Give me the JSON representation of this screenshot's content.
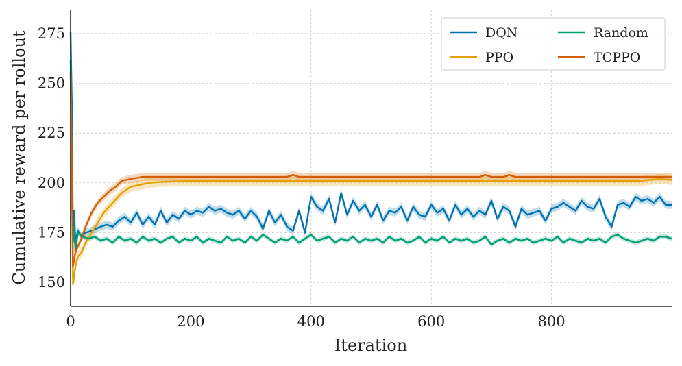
{
  "chart_data": {
    "type": "line",
    "title": "",
    "xlabel": "Iteration",
    "ylabel": "Cumulative reward per rollout",
    "xlim": [
      0,
      1000
    ],
    "ylim": [
      138,
      287
    ],
    "xticks": [
      0,
      200,
      400,
      600,
      800
    ],
    "yticks": [
      150,
      175,
      200,
      225,
      250,
      275
    ],
    "grid": true,
    "legend_position": "top-right",
    "series": [
      {
        "name": "DQN",
        "color": "#0072b2",
        "band": 2.0,
        "points": [
          [
            0,
            276
          ],
          [
            2,
            240
          ],
          [
            4,
            170
          ],
          [
            6,
            186
          ],
          [
            8,
            170
          ],
          [
            12,
            176
          ],
          [
            18,
            173
          ],
          [
            25,
            175
          ],
          [
            35,
            176
          ],
          [
            50,
            178
          ],
          [
            60,
            179
          ],
          [
            70,
            178
          ],
          [
            80,
            181
          ],
          [
            90,
            183
          ],
          [
            100,
            180
          ],
          [
            110,
            185
          ],
          [
            120,
            179
          ],
          [
            130,
            183
          ],
          [
            140,
            179
          ],
          [
            150,
            186
          ],
          [
            160,
            180
          ],
          [
            170,
            184
          ],
          [
            180,
            182
          ],
          [
            190,
            186
          ],
          [
            200,
            184
          ],
          [
            210,
            186
          ],
          [
            220,
            185
          ],
          [
            230,
            188
          ],
          [
            240,
            186
          ],
          [
            250,
            187
          ],
          [
            260,
            185
          ],
          [
            270,
            184
          ],
          [
            280,
            186
          ],
          [
            290,
            182
          ],
          [
            300,
            186
          ],
          [
            310,
            183
          ],
          [
            320,
            177
          ],
          [
            330,
            186
          ],
          [
            340,
            180
          ],
          [
            350,
            184
          ],
          [
            360,
            178
          ],
          [
            370,
            176
          ],
          [
            380,
            186
          ],
          [
            390,
            175
          ],
          [
            400,
            193
          ],
          [
            410,
            188
          ],
          [
            420,
            186
          ],
          [
            430,
            192
          ],
          [
            440,
            180
          ],
          [
            450,
            195
          ],
          [
            460,
            184
          ],
          [
            470,
            191
          ],
          [
            480,
            186
          ],
          [
            490,
            189
          ],
          [
            500,
            183
          ],
          [
            510,
            189
          ],
          [
            520,
            181
          ],
          [
            530,
            186
          ],
          [
            540,
            185
          ],
          [
            550,
            188
          ],
          [
            560,
            181
          ],
          [
            570,
            188
          ],
          [
            580,
            184
          ],
          [
            590,
            183
          ],
          [
            600,
            189
          ],
          [
            610,
            185
          ],
          [
            620,
            187
          ],
          [
            630,
            181
          ],
          [
            640,
            189
          ],
          [
            650,
            184
          ],
          [
            660,
            187
          ],
          [
            670,
            183
          ],
          [
            680,
            186
          ],
          [
            690,
            184
          ],
          [
            700,
            191
          ],
          [
            710,
            182
          ],
          [
            720,
            188
          ],
          [
            730,
            186
          ],
          [
            740,
            178
          ],
          [
            750,
            187
          ],
          [
            760,
            184
          ],
          [
            770,
            185
          ],
          [
            780,
            186
          ],
          [
            790,
            181
          ],
          [
            800,
            187
          ],
          [
            810,
            188
          ],
          [
            820,
            190
          ],
          [
            830,
            188
          ],
          [
            840,
            186
          ],
          [
            850,
            191
          ],
          [
            860,
            188
          ],
          [
            870,
            187
          ],
          [
            880,
            192
          ],
          [
            890,
            183
          ],
          [
            900,
            178
          ],
          [
            910,
            189
          ],
          [
            920,
            190
          ],
          [
            930,
            188
          ],
          [
            940,
            193
          ],
          [
            950,
            191
          ],
          [
            960,
            192
          ],
          [
            970,
            190
          ],
          [
            980,
            193
          ],
          [
            990,
            189
          ],
          [
            1000,
            189
          ]
        ]
      },
      {
        "name": "PPO",
        "color": "#e69f00",
        "band": 2.5,
        "points": [
          [
            0,
            256
          ],
          [
            2,
            200
          ],
          [
            4,
            149
          ],
          [
            8,
            158
          ],
          [
            12,
            163
          ],
          [
            18,
            165
          ],
          [
            25,
            170
          ],
          [
            35,
            175
          ],
          [
            45,
            180
          ],
          [
            55,
            185
          ],
          [
            70,
            190
          ],
          [
            85,
            195
          ],
          [
            100,
            198
          ],
          [
            115,
            199
          ],
          [
            130,
            200
          ],
          [
            150,
            200.5
          ],
          [
            200,
            201
          ],
          [
            300,
            201
          ],
          [
            400,
            201
          ],
          [
            500,
            201
          ],
          [
            600,
            201
          ],
          [
            700,
            201
          ],
          [
            800,
            201
          ],
          [
            900,
            201
          ],
          [
            950,
            201
          ],
          [
            980,
            202
          ],
          [
            1000,
            201.5
          ]
        ]
      },
      {
        "name": "Random",
        "color": "#009e73",
        "band": 1.2,
        "points": [
          [
            0,
            262
          ],
          [
            2,
            210
          ],
          [
            4,
            172
          ],
          [
            6,
            178
          ],
          [
            8,
            165
          ],
          [
            12,
            175
          ],
          [
            20,
            173
          ],
          [
            30,
            172
          ],
          [
            40,
            173
          ],
          [
            50,
            171
          ],
          [
            60,
            172
          ],
          [
            70,
            170
          ],
          [
            80,
            173
          ],
          [
            90,
            171
          ],
          [
            100,
            172
          ],
          [
            110,
            170
          ],
          [
            120,
            173
          ],
          [
            130,
            171
          ],
          [
            140,
            172
          ],
          [
            150,
            170
          ],
          [
            160,
            172
          ],
          [
            170,
            173
          ],
          [
            180,
            170
          ],
          [
            190,
            172
          ],
          [
            200,
            171
          ],
          [
            210,
            173
          ],
          [
            220,
            170
          ],
          [
            230,
            172
          ],
          [
            240,
            171
          ],
          [
            250,
            170
          ],
          [
            260,
            173
          ],
          [
            270,
            171
          ],
          [
            280,
            172
          ],
          [
            290,
            170
          ],
          [
            300,
            173
          ],
          [
            310,
            171
          ],
          [
            320,
            174
          ],
          [
            330,
            172
          ],
          [
            340,
            170
          ],
          [
            350,
            172
          ],
          [
            360,
            171
          ],
          [
            370,
            173
          ],
          [
            380,
            170
          ],
          [
            390,
            172
          ],
          [
            400,
            174
          ],
          [
            410,
            171
          ],
          [
            420,
            172
          ],
          [
            430,
            173
          ],
          [
            440,
            170
          ],
          [
            450,
            172
          ],
          [
            460,
            171
          ],
          [
            470,
            173
          ],
          [
            480,
            170
          ],
          [
            490,
            172
          ],
          [
            500,
            171
          ],
          [
            510,
            172
          ],
          [
            520,
            170
          ],
          [
            530,
            173
          ],
          [
            540,
            171
          ],
          [
            550,
            172
          ],
          [
            560,
            170
          ],
          [
            570,
            171
          ],
          [
            580,
            173
          ],
          [
            590,
            170
          ],
          [
            600,
            172
          ],
          [
            610,
            171
          ],
          [
            620,
            173
          ],
          [
            630,
            170
          ],
          [
            640,
            172
          ],
          [
            650,
            171
          ],
          [
            660,
            172
          ],
          [
            670,
            170
          ],
          [
            680,
            171
          ],
          [
            690,
            173
          ],
          [
            700,
            169
          ],
          [
            710,
            171
          ],
          [
            720,
            172
          ],
          [
            730,
            170
          ],
          [
            740,
            172
          ],
          [
            750,
            171
          ],
          [
            760,
            172
          ],
          [
            770,
            170
          ],
          [
            780,
            171
          ],
          [
            790,
            172
          ],
          [
            800,
            171
          ],
          [
            810,
            173
          ],
          [
            820,
            170
          ],
          [
            830,
            172
          ],
          [
            840,
            171
          ],
          [
            850,
            170
          ],
          [
            860,
            172
          ],
          [
            870,
            171
          ],
          [
            880,
            172
          ],
          [
            890,
            170
          ],
          [
            900,
            173
          ],
          [
            910,
            174
          ],
          [
            920,
            172
          ],
          [
            930,
            171
          ],
          [
            940,
            170
          ],
          [
            950,
            171
          ],
          [
            960,
            172
          ],
          [
            970,
            171
          ],
          [
            980,
            173
          ],
          [
            990,
            173
          ],
          [
            1000,
            172
          ]
        ]
      },
      {
        "name": "TCPPO",
        "color": "#d55e00",
        "band": 2.0,
        "points": [
          [
            0,
            256
          ],
          [
            2,
            205
          ],
          [
            4,
            158
          ],
          [
            8,
            165
          ],
          [
            12,
            168
          ],
          [
            18,
            172
          ],
          [
            25,
            178
          ],
          [
            35,
            185
          ],
          [
            45,
            190
          ],
          [
            55,
            193
          ],
          [
            65,
            196
          ],
          [
            75,
            198
          ],
          [
            85,
            201
          ],
          [
            100,
            202
          ],
          [
            120,
            203
          ],
          [
            150,
            203
          ],
          [
            200,
            203
          ],
          [
            300,
            203
          ],
          [
            360,
            203
          ],
          [
            370,
            204
          ],
          [
            380,
            203
          ],
          [
            400,
            203
          ],
          [
            500,
            203
          ],
          [
            600,
            203
          ],
          [
            680,
            203
          ],
          [
            690,
            204
          ],
          [
            700,
            203
          ],
          [
            720,
            203
          ],
          [
            730,
            204
          ],
          [
            740,
            203
          ],
          [
            800,
            203
          ],
          [
            900,
            203
          ],
          [
            1000,
            203
          ]
        ]
      }
    ]
  }
}
